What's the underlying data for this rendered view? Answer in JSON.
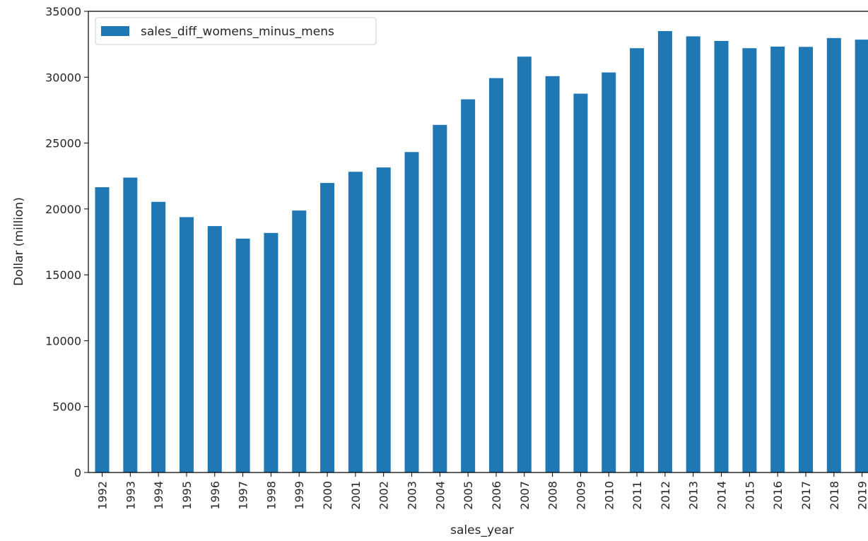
{
  "chart_data": {
    "type": "bar",
    "title": "",
    "xlabel": "sales_year",
    "ylabel": "Dollar (million)",
    "ylim": [
      0,
      35000
    ],
    "yticks": [
      0,
      5000,
      10000,
      15000,
      20000,
      25000,
      30000,
      35000
    ],
    "categories": [
      "1992",
      "1993",
      "1994",
      "1995",
      "1996",
      "1997",
      "1998",
      "1999",
      "2000",
      "2001",
      "2002",
      "2003",
      "2004",
      "2005",
      "2006",
      "2007",
      "2008",
      "2009",
      "2010",
      "2011",
      "2012",
      "2013",
      "2014",
      "2015",
      "2016",
      "2017",
      "2018",
      "2019"
    ],
    "series": [
      {
        "name": "sales_diff_womens_minus_mens",
        "color": "#1f77b4",
        "values": [
          21650,
          22380,
          20540,
          19380,
          18700,
          17750,
          18180,
          19880,
          21970,
          22820,
          23150,
          24320,
          26380,
          28320,
          29930,
          31560,
          30080,
          28750,
          30360,
          32200,
          33500,
          33100,
          32750,
          32200,
          32320,
          32300,
          32970,
          32850
        ]
      }
    ],
    "legend": {
      "placement": "top-left",
      "entries": [
        "sales_diff_womens_minus_mens"
      ]
    },
    "grid": false
  }
}
